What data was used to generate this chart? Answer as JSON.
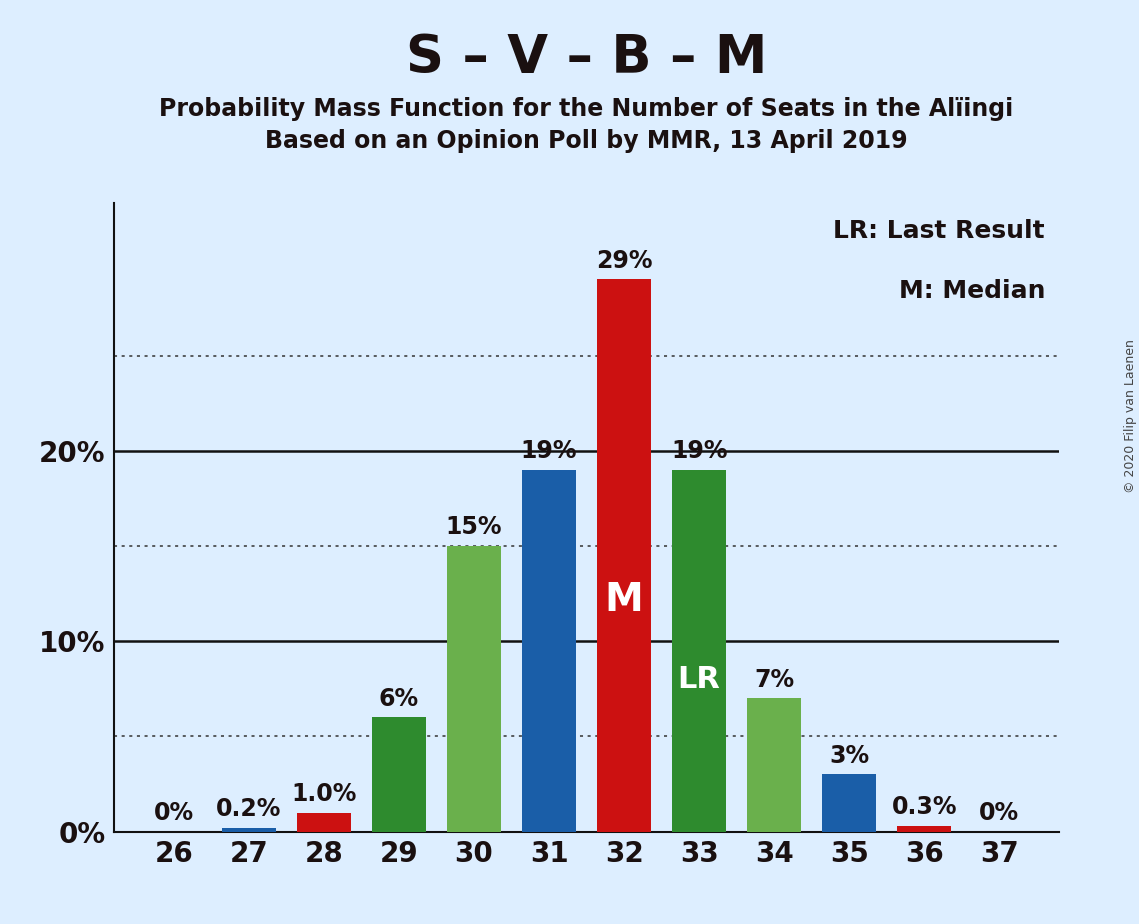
{
  "title": "S – V – B – M",
  "subtitle1": "Probability Mass Function for the Number of Seats in the Alïingi",
  "subtitle2": "Based on an Opinion Poll by MMR, 13 April 2019",
  "copyright": "© 2020 Filip van Laenen",
  "legend_line1": "LR: Last Result",
  "legend_line2": "M: Median",
  "seats": [
    26,
    27,
    28,
    29,
    30,
    31,
    32,
    33,
    34,
    35,
    36,
    37
  ],
  "values": [
    0.0,
    0.2,
    1.0,
    6.0,
    15.0,
    19.0,
    29.0,
    19.0,
    7.0,
    3.0,
    0.3,
    0.0
  ],
  "labels": [
    "0%",
    "0.2%",
    "1.0%",
    "6%",
    "15%",
    "19%",
    "29%",
    "19%",
    "7%",
    "3%",
    "0.3%",
    "0%"
  ],
  "colors": [
    "#1a5ea8",
    "#1a5ea8",
    "#cc1111",
    "#2e8b2e",
    "#6ab04c",
    "#1a5ea8",
    "#cc1111",
    "#2e8b2e",
    "#6ab04c",
    "#1a5ea8",
    "#cc1111",
    "#1a5ea8"
  ],
  "median_seat": 32,
  "lr_seat": 33,
  "median_label": "M",
  "lr_label": "LR",
  "ylim_max": 33,
  "solid_lines": [
    10,
    20
  ],
  "dotted_lines": [
    5,
    15,
    25
  ],
  "background_color": "#ddeeff",
  "title_color": "#1a1010",
  "bar_width": 0.72,
  "title_fontsize": 38,
  "subtitle_fontsize": 17,
  "axis_tick_fontsize": 20,
  "bar_label_fontsize": 17,
  "legend_fontsize": 18,
  "copyright_fontsize": 9,
  "inside_label_fontsize_M": 28,
  "inside_label_fontsize_LR": 22
}
